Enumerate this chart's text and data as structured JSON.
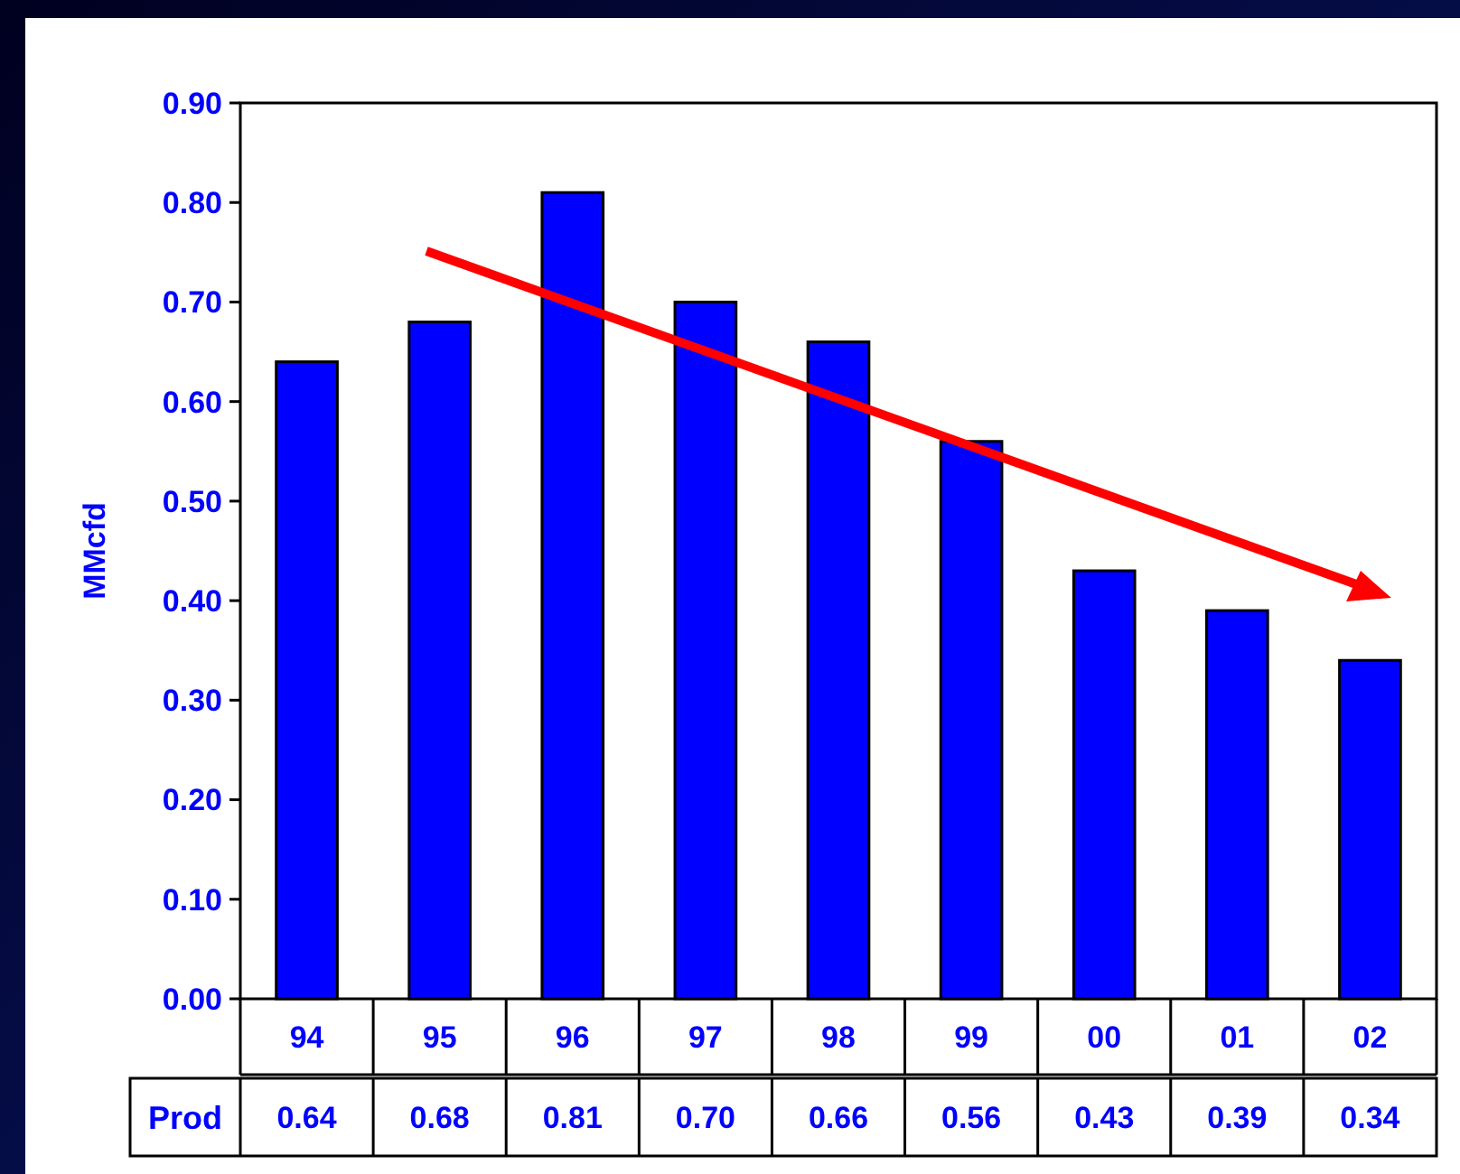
{
  "chart_data": {
    "type": "bar",
    "ylabel": "MMcfd",
    "categories": [
      "94",
      "95",
      "96",
      "97",
      "98",
      "99",
      "00",
      "01",
      "02"
    ],
    "series": [
      {
        "name": "Prod",
        "color": "#0000ff",
        "values": [
          0.64,
          0.68,
          0.81,
          0.7,
          0.66,
          0.56,
          0.43,
          0.39,
          0.34
        ],
        "value_labels": [
          "0.64",
          "0.68",
          "0.81",
          "0.70",
          "0.66",
          "0.56",
          "0.43",
          "0.39",
          "0.34"
        ]
      }
    ],
    "ylim": [
      0,
      0.9
    ],
    "yticks": [
      {
        "value": 0,
        "label": "0.00"
      },
      {
        "value": 0.1,
        "label": "0.10"
      },
      {
        "value": 0.2,
        "label": "0.20"
      },
      {
        "value": 0.3,
        "label": "0.30"
      },
      {
        "value": 0.4,
        "label": "0.40"
      },
      {
        "value": 0.5,
        "label": "0.50"
      },
      {
        "value": 0.6,
        "label": "0.60"
      },
      {
        "value": 0.7,
        "label": "0.70"
      },
      {
        "value": 0.8,
        "label": "0.80"
      },
      {
        "value": 0.9,
        "label": "0.90"
      }
    ],
    "grid": false,
    "legend": "bottom"
  }
}
